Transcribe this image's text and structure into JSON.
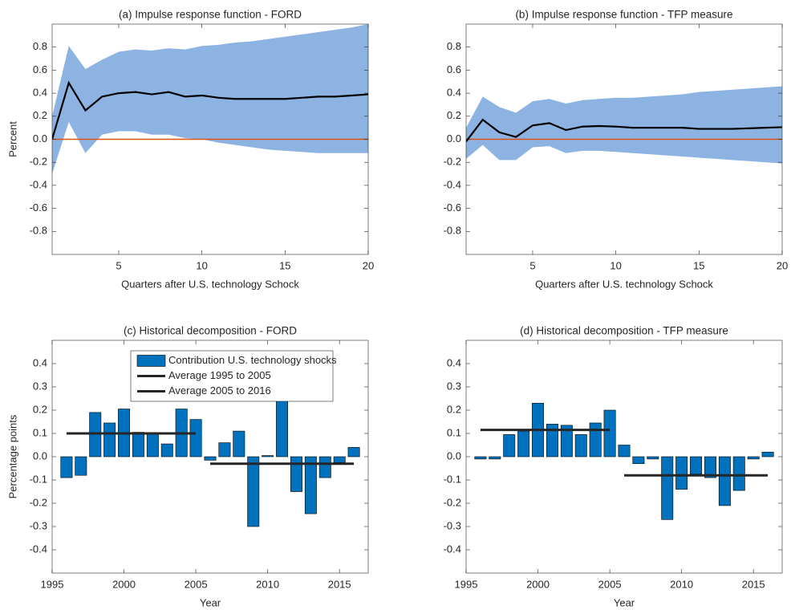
{
  "chart_data": [
    {
      "type": "line",
      "title": "(a) Impulse response function - FORD",
      "x_label": "Quarters after U.S. technology Schock",
      "y_label": "Percent",
      "x": [
        1,
        2,
        3,
        4,
        5,
        6,
        7,
        8,
        9,
        10,
        11,
        12,
        13,
        14,
        15,
        16,
        17,
        18,
        19,
        20
      ],
      "values": [
        0,
        0.49,
        0.25,
        0.37,
        0.4,
        0.41,
        0.39,
        0.41,
        0.37,
        0.38,
        0.36,
        0.35,
        0.35,
        0.35,
        0.35,
        0.36,
        0.37,
        0.37,
        0.38,
        0.39
      ],
      "color": "#000000",
      "band": {
        "color": "#8db3e2",
        "upper": [
          0.2,
          0.81,
          0.61,
          0.69,
          0.76,
          0.78,
          0.77,
          0.79,
          0.78,
          0.81,
          0.82,
          0.84,
          0.85,
          0.87,
          0.89,
          0.91,
          0.93,
          0.95,
          0.97,
          1.0
        ],
        "lower": [
          -0.3,
          0.15,
          -0.12,
          0.04,
          0.07,
          0.07,
          0.04,
          0.04,
          0.01,
          0.0,
          -0.03,
          -0.05,
          -0.07,
          -0.09,
          -0.1,
          -0.11,
          -0.12,
          -0.12,
          -0.12,
          -0.12
        ]
      },
      "reference_line": {
        "value": 0,
        "color": "#d95319"
      },
      "xlim": [
        1,
        20
      ],
      "xticks": [
        5,
        10,
        15,
        20
      ],
      "ylim": [
        -1,
        1
      ],
      "yticks": [
        -0.8,
        -0.6,
        -0.4,
        -0.2,
        {
          "value": 0,
          "label": "0.0"
        },
        0.2,
        0.4,
        0.6,
        0.8
      ]
    },
    {
      "type": "line",
      "title": "(b) Impulse response function - TFP measure",
      "x_label": "Quarters after U.S. technology Schock",
      "x": [
        1,
        2,
        3,
        4,
        5,
        6,
        7,
        8,
        9,
        10,
        11,
        12,
        13,
        14,
        15,
        16,
        17,
        18,
        19,
        20
      ],
      "values": [
        -0.02,
        0.17,
        0.06,
        0.02,
        0.12,
        0.14,
        0.08,
        0.11,
        0.115,
        0.11,
        0.1,
        0.1,
        0.1,
        0.1,
        0.09,
        0.09,
        0.09,
        0.095,
        0.1,
        0.105
      ],
      "color": "#000000",
      "band": {
        "color": "#8db3e2",
        "upper": [
          0.1,
          0.37,
          0.28,
          0.23,
          0.33,
          0.35,
          0.31,
          0.34,
          0.35,
          0.36,
          0.36,
          0.37,
          0.38,
          0.39,
          0.41,
          0.42,
          0.43,
          0.44,
          0.45,
          0.46
        ],
        "lower": [
          -0.17,
          -0.05,
          -0.18,
          -0.18,
          -0.07,
          -0.06,
          -0.12,
          -0.1,
          -0.1,
          -0.11,
          -0.12,
          -0.13,
          -0.14,
          -0.15,
          -0.16,
          -0.17,
          -0.18,
          -0.19,
          -0.2,
          -0.21
        ]
      },
      "reference_line": {
        "value": 0,
        "color": "#d95319"
      },
      "xlim": [
        1,
        20
      ],
      "xticks": [
        5,
        10,
        15,
        20
      ],
      "ylim": [
        -1,
        1
      ],
      "yticks": [
        -0.8,
        -0.6,
        -0.4,
        -0.2,
        {
          "value": 0,
          "label": "0.0"
        },
        0.2,
        0.4,
        0.6,
        0.8
      ]
    },
    {
      "type": "bar",
      "title": "(c) Historical decomposition - FORD",
      "x_label": "Year",
      "y_label": "Percentage points",
      "x": [
        1996,
        1997,
        1998,
        1999,
        2000,
        2001,
        2002,
        2003,
        2004,
        2005,
        2006,
        2007,
        2008,
        2009,
        2010,
        2011,
        2012,
        2013,
        2014,
        2015,
        2016
      ],
      "series": [
        {
          "name": "Contribution U.S. technology shocks",
          "type": "bar",
          "color": "#0072bd",
          "values": [
            -0.09,
            -0.08,
            0.19,
            0.145,
            0.205,
            0.105,
            0.1,
            0.055,
            0.205,
            0.16,
            -0.015,
            0.06,
            0.11,
            -0.3,
            0.005,
            0.25,
            -0.15,
            -0.245,
            -0.09,
            -0.025,
            0.04
          ]
        },
        {
          "name": "Average 1995 to 2005",
          "type": "line",
          "color": "#262626",
          "x": [
            1996,
            2005
          ],
          "values": [
            0.1,
            0.1
          ]
        },
        {
          "name": "Average 2005 to 2016",
          "type": "line",
          "color": "#262626",
          "x": [
            2006,
            2016
          ],
          "values": [
            -0.03,
            -0.03
          ]
        }
      ],
      "legend": "north",
      "xlim": [
        1995,
        2017
      ],
      "xticks": [
        1995,
        2000,
        2005,
        2010,
        2015
      ],
      "ylim": [
        -0.5,
        0.5
      ],
      "yticks": [
        -0.4,
        -0.3,
        -0.2,
        -0.1,
        {
          "value": 0,
          "label": "0.0"
        },
        0.1,
        0.2,
        0.3,
        0.4
      ]
    },
    {
      "type": "bar",
      "title": "(d) Historical decomposition - TFP measure",
      "x_label": "Year",
      "x": [
        1996,
        1997,
        1998,
        1999,
        2000,
        2001,
        2002,
        2003,
        2004,
        2005,
        2006,
        2007,
        2008,
        2009,
        2010,
        2011,
        2012,
        2013,
        2014,
        2015,
        2016
      ],
      "series": [
        {
          "type": "bar",
          "color": "#0072bd",
          "values": [
            -0.01,
            -0.01,
            0.095,
            0.11,
            0.23,
            0.14,
            0.135,
            0.095,
            0.145,
            0.2,
            0.05,
            -0.03,
            -0.01,
            -0.27,
            -0.14,
            -0.075,
            -0.09,
            -0.21,
            -0.145,
            -0.01,
            0.02
          ]
        },
        {
          "type": "line",
          "color": "#262626",
          "x": [
            1996,
            2005
          ],
          "values": [
            0.115,
            0.115
          ]
        },
        {
          "type": "line",
          "color": "#262626",
          "x": [
            2006,
            2016
          ],
          "values": [
            -0.08,
            -0.08
          ]
        }
      ],
      "xlim": [
        1995,
        2017
      ],
      "xticks": [
        1995,
        2000,
        2005,
        2010,
        2015
      ],
      "ylim": [
        -0.5,
        0.5
      ],
      "yticks": [
        -0.4,
        -0.3,
        -0.2,
        -0.1,
        {
          "value": 0,
          "label": "0.0"
        },
        0.1,
        0.2,
        0.3,
        0.4
      ]
    }
  ]
}
